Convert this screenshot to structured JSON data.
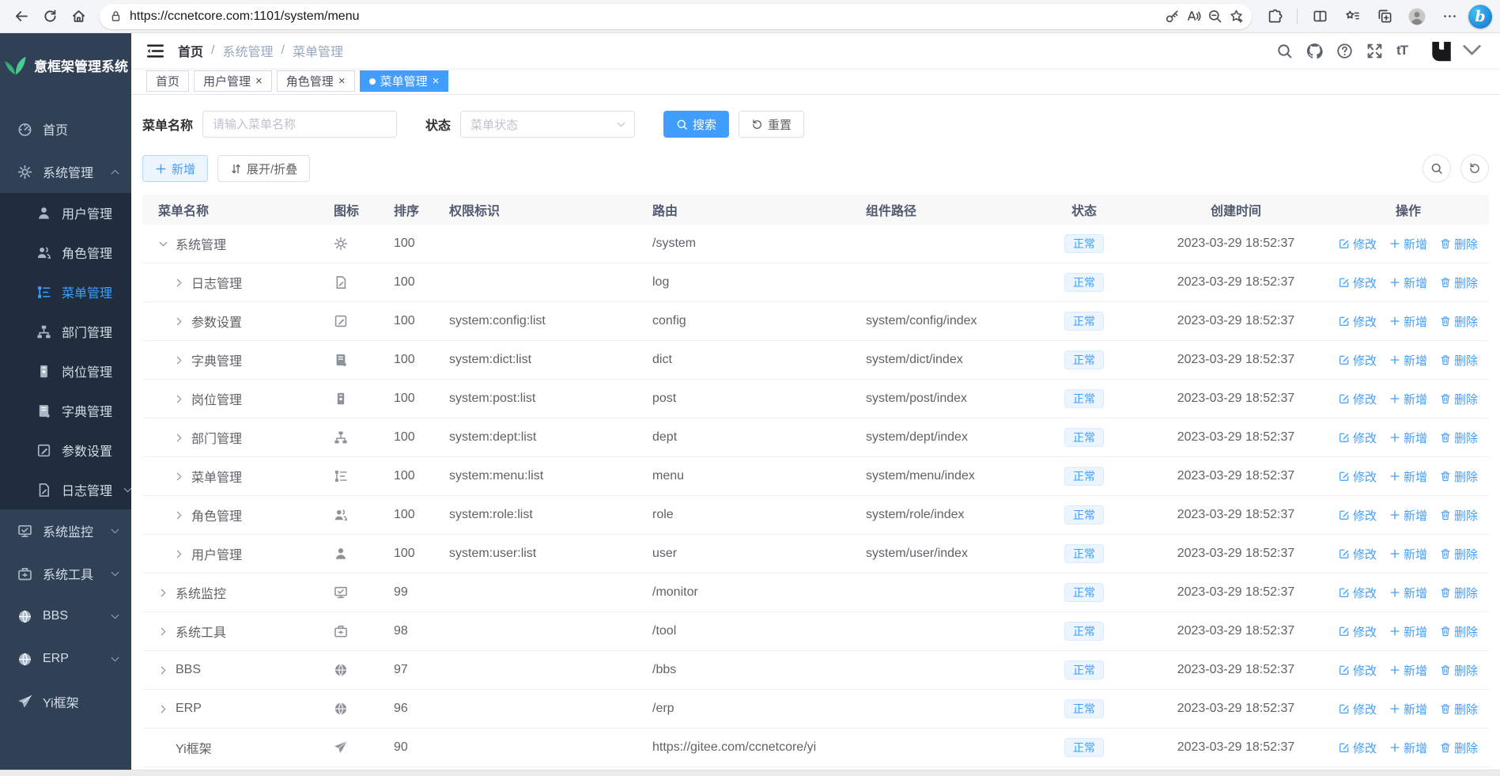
{
  "browser": {
    "url": "https://ccnetcore.com:1101/system/menu",
    "nav_icons": [
      "back",
      "reload",
      "home"
    ],
    "address_icons": [
      "lock",
      "key",
      "read-aloud",
      "zoom-out",
      "favorite-add"
    ],
    "toolbar_icons": [
      "extensions",
      "split-screen",
      "favorites",
      "collections",
      "profile",
      "more",
      "bing"
    ],
    "bing_letter": "b"
  },
  "sidebar": {
    "logo_text": "意框架管理系统",
    "logo_icon": "leaf-logo",
    "items": [
      {
        "label": "首页",
        "icon": "dashboard"
      },
      {
        "label": "系统管理",
        "icon": "gear",
        "expanded": true,
        "children": [
          {
            "label": "用户管理",
            "icon": "user"
          },
          {
            "label": "角色管理",
            "icon": "role"
          },
          {
            "label": "菜单管理",
            "icon": "menu",
            "active": true
          },
          {
            "label": "部门管理",
            "icon": "dept"
          },
          {
            "label": "岗位管理",
            "icon": "post"
          },
          {
            "label": "字典管理",
            "icon": "dict"
          },
          {
            "label": "参数设置",
            "icon": "config"
          },
          {
            "label": "日志管理",
            "icon": "log",
            "has_children": true
          }
        ]
      },
      {
        "label": "系统监控",
        "icon": "monitor",
        "has_children": true
      },
      {
        "label": "系统工具",
        "icon": "tool",
        "has_children": true
      },
      {
        "label": "BBS",
        "icon": "globe",
        "has_children": true
      },
      {
        "label": "ERP",
        "icon": "globe",
        "has_children": true
      },
      {
        "label": "Yi框架",
        "icon": "plane"
      }
    ]
  },
  "header": {
    "breadcrumb": [
      "首页",
      "系统管理",
      "菜单管理"
    ],
    "separator": "/",
    "icons": [
      "search",
      "github",
      "help",
      "fullscreen",
      "font-size",
      "yi-logo"
    ],
    "font_size_label": "tT"
  },
  "tabs": [
    {
      "label": "首页",
      "closable": false,
      "active": false
    },
    {
      "label": "用户管理",
      "closable": true,
      "active": false
    },
    {
      "label": "角色管理",
      "closable": true,
      "active": false
    },
    {
      "label": "菜单管理",
      "closable": true,
      "active": true
    }
  ],
  "filters": {
    "name_label": "菜单名称",
    "name_placeholder": "请输入菜单名称",
    "name_value": "",
    "status_label": "状态",
    "status_placeholder": "菜单状态",
    "search_label": "搜索",
    "reset_label": "重置"
  },
  "toolbar": {
    "add_label": "新增",
    "toggle_label": "展开/折叠",
    "right_icons": [
      "search",
      "refresh"
    ]
  },
  "table": {
    "columns": [
      "菜单名称",
      "图标",
      "排序",
      "权限标识",
      "路由",
      "组件路径",
      "状态",
      "创建时间",
      "操作"
    ],
    "actions": {
      "edit": "修改",
      "add": "新增",
      "delete": "删除"
    },
    "rows": [
      {
        "name": "系统管理",
        "icon": "gear",
        "level": 0,
        "expand": "down",
        "sort": "100",
        "perm": "",
        "route": "/system",
        "component": "",
        "status": "正常",
        "created": "2023-03-29 18:52:37"
      },
      {
        "name": "日志管理",
        "icon": "log",
        "level": 1,
        "expand": "right",
        "sort": "100",
        "perm": "",
        "route": "log",
        "component": "",
        "status": "正常",
        "created": "2023-03-29 18:52:37"
      },
      {
        "name": "参数设置",
        "icon": "config",
        "level": 1,
        "expand": "right",
        "sort": "100",
        "perm": "system:config:list",
        "route": "config",
        "component": "system/config/index",
        "status": "正常",
        "created": "2023-03-29 18:52:37"
      },
      {
        "name": "字典管理",
        "icon": "dict",
        "level": 1,
        "expand": "right",
        "sort": "100",
        "perm": "system:dict:list",
        "route": "dict",
        "component": "system/dict/index",
        "status": "正常",
        "created": "2023-03-29 18:52:37"
      },
      {
        "name": "岗位管理",
        "icon": "post",
        "level": 1,
        "expand": "right",
        "sort": "100",
        "perm": "system:post:list",
        "route": "post",
        "component": "system/post/index",
        "status": "正常",
        "created": "2023-03-29 18:52:37"
      },
      {
        "name": "部门管理",
        "icon": "dept",
        "level": 1,
        "expand": "right",
        "sort": "100",
        "perm": "system:dept:list",
        "route": "dept",
        "component": "system/dept/index",
        "status": "正常",
        "created": "2023-03-29 18:52:37"
      },
      {
        "name": "菜单管理",
        "icon": "menu",
        "level": 1,
        "expand": "right",
        "sort": "100",
        "perm": "system:menu:list",
        "route": "menu",
        "component": "system/menu/index",
        "status": "正常",
        "created": "2023-03-29 18:52:37"
      },
      {
        "name": "角色管理",
        "icon": "role",
        "level": 1,
        "expand": "right",
        "sort": "100",
        "perm": "system:role:list",
        "route": "role",
        "component": "system/role/index",
        "status": "正常",
        "created": "2023-03-29 18:52:37"
      },
      {
        "name": "用户管理",
        "icon": "user",
        "level": 1,
        "expand": "right",
        "sort": "100",
        "perm": "system:user:list",
        "route": "user",
        "component": "system/user/index",
        "status": "正常",
        "created": "2023-03-29 18:52:37"
      },
      {
        "name": "系统监控",
        "icon": "monitor",
        "level": 0,
        "expand": "right",
        "sort": "99",
        "perm": "",
        "route": "/monitor",
        "component": "",
        "status": "正常",
        "created": "2023-03-29 18:52:37"
      },
      {
        "name": "系统工具",
        "icon": "tool",
        "level": 0,
        "expand": "right",
        "sort": "98",
        "perm": "",
        "route": "/tool",
        "component": "",
        "status": "正常",
        "created": "2023-03-29 18:52:37"
      },
      {
        "name": "BBS",
        "icon": "globe",
        "level": 0,
        "expand": "right",
        "sort": "97",
        "perm": "",
        "route": "/bbs",
        "component": "",
        "status": "正常",
        "created": "2023-03-29 18:52:37"
      },
      {
        "name": "ERP",
        "icon": "globe",
        "level": 0,
        "expand": "right",
        "sort": "96",
        "perm": "",
        "route": "/erp",
        "component": "",
        "status": "正常",
        "created": "2023-03-29 18:52:37"
      },
      {
        "name": "Yi框架",
        "icon": "plane",
        "level": 0,
        "expand": null,
        "sort": "90",
        "perm": "",
        "route": "https://gitee.com/ccnetcore/yi",
        "component": "",
        "status": "正常",
        "created": "2023-03-29 18:52:37"
      }
    ]
  },
  "colors": {
    "accent": "#409eff",
    "sidebar_bg": "#304156",
    "sidebar_sub_bg": "#1f2d3d",
    "badge_bg": "#ecf5ff",
    "badge_border": "#d9ecff",
    "table_header_bg": "#f8f8f9",
    "breadcrumb_muted": "#97a8be"
  }
}
